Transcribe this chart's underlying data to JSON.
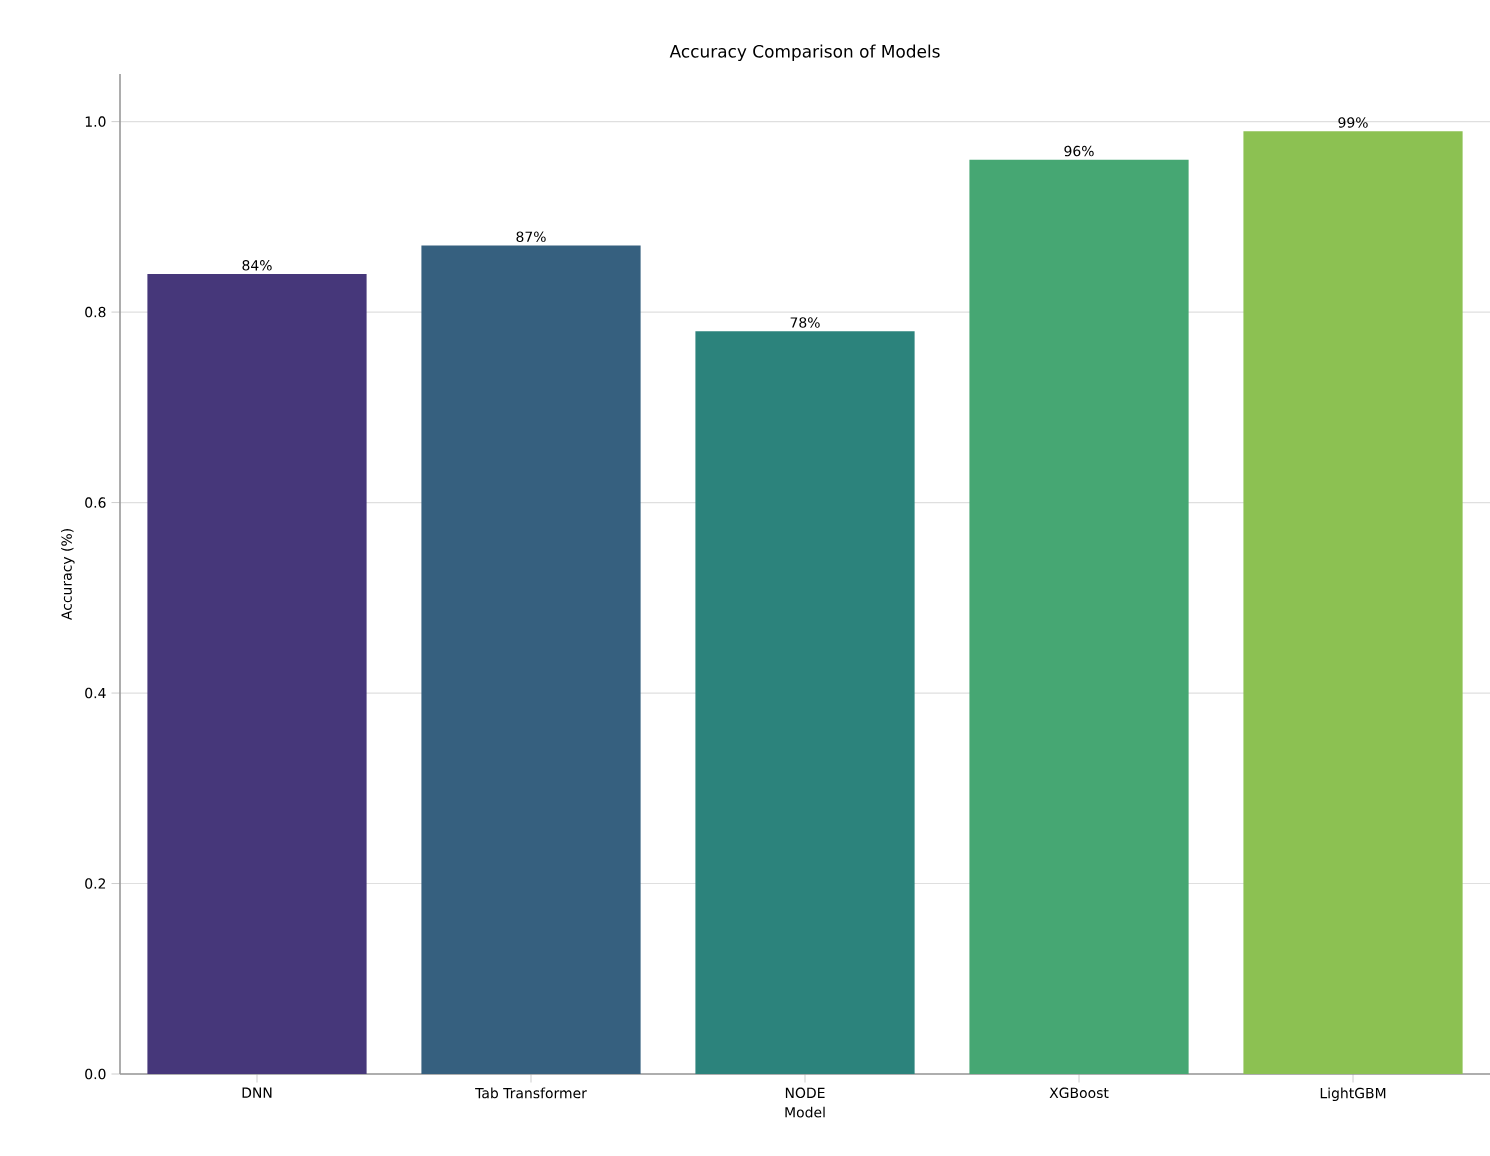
{
  "chart_data": {
    "type": "bar",
    "title": "Accuracy Comparison of Models",
    "xlabel": "Model",
    "ylabel": "Accuracy (%)",
    "categories": [
      "DNN",
      "Tab Transformer",
      "NODE",
      "XGBoost",
      "LightGBM"
    ],
    "values": [
      0.84,
      0.87,
      0.78,
      0.96,
      0.99
    ],
    "value_labels": [
      "84%",
      "87%",
      "78%",
      "96%",
      "99%"
    ],
    "colors": [
      "#46377a",
      "#36607f",
      "#2c837c",
      "#46a773",
      "#8cc152"
    ],
    "ylim": [
      0,
      1.05
    ],
    "yticks": [
      {
        "value": 0,
        "label": "0.0"
      },
      0.2,
      0.4,
      0.6,
      0.8,
      {
        "value": 1,
        "label": "1.0"
      }
    ],
    "grid": "y"
  }
}
